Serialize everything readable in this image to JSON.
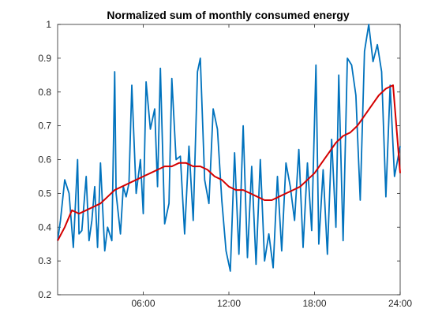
{
  "chart_data": {
    "type": "line",
    "title": "Normalized sum of monthly consumed energy",
    "xlabel": "",
    "ylabel": "",
    "xlim": [
      0,
      24
    ],
    "ylim": [
      0.2,
      1.0
    ],
    "x_ticks": [
      6,
      12,
      18,
      24
    ],
    "x_tick_labels": [
      "06:00",
      "12:00",
      "18:00",
      "24:00"
    ],
    "y_ticks": [
      0.2,
      0.3,
      0.4,
      0.5,
      0.6,
      0.7,
      0.8,
      0.9,
      1.0
    ],
    "y_tick_labels": [
      "0.2",
      "0.3",
      "0.4",
      "0.5",
      "0.6",
      "0.7",
      "0.8",
      "0.9",
      "1"
    ],
    "grid": false,
    "legend": "none",
    "series": [
      {
        "color": "#0072BD",
        "x": [
          0,
          0.2,
          0.5,
          0.8,
          1.1,
          1.4,
          1.5,
          1.7,
          2.0,
          2.2,
          2.4,
          2.6,
          2.8,
          3.0,
          3.3,
          3.5,
          3.8,
          4.0,
          4.1,
          4.4,
          4.6,
          4.8,
          5.0,
          5.2,
          5.5,
          5.8,
          6.0,
          6.2,
          6.5,
          6.8,
          7.0,
          7.2,
          7.5,
          7.8,
          8.0,
          8.3,
          8.6,
          8.9,
          9.2,
          9.5,
          9.8,
          10.0,
          10.3,
          10.6,
          10.9,
          11.2,
          11.5,
          11.8,
          12.1,
          12.4,
          12.7,
          13.0,
          13.3,
          13.6,
          13.9,
          14.2,
          14.5,
          14.8,
          15.1,
          15.4,
          15.7,
          16.0,
          16.3,
          16.6,
          16.9,
          17.2,
          17.5,
          17.8,
          18.1,
          18.3,
          18.6,
          18.9,
          19.2,
          19.5,
          19.7,
          20.0,
          20.3,
          20.6,
          20.9,
          21.2,
          21.5,
          21.8,
          22.1,
          22.4,
          22.7,
          23.0,
          23.3,
          23.6,
          24.0
        ],
        "y": [
          0.36,
          0.42,
          0.54,
          0.5,
          0.34,
          0.6,
          0.38,
          0.39,
          0.55,
          0.36,
          0.42,
          0.52,
          0.34,
          0.59,
          0.33,
          0.4,
          0.36,
          0.86,
          0.5,
          0.38,
          0.52,
          0.49,
          0.53,
          0.82,
          0.5,
          0.6,
          0.44,
          0.83,
          0.69,
          0.75,
          0.52,
          0.87,
          0.41,
          0.47,
          0.84,
          0.6,
          0.61,
          0.38,
          0.64,
          0.42,
          0.86,
          0.9,
          0.54,
          0.47,
          0.75,
          0.69,
          0.48,
          0.33,
          0.27,
          0.62,
          0.32,
          0.7,
          0.31,
          0.58,
          0.29,
          0.6,
          0.3,
          0.38,
          0.28,
          0.55,
          0.33,
          0.59,
          0.52,
          0.42,
          0.63,
          0.34,
          0.59,
          0.39,
          0.88,
          0.35,
          0.57,
          0.32,
          0.66,
          0.4,
          0.85,
          0.36,
          0.9,
          0.88,
          0.79,
          0.48,
          0.92,
          1.0,
          0.89,
          0.94,
          0.86,
          0.49,
          0.82,
          0.55,
          0.64
        ]
      },
      {
        "color": "#D40000",
        "x": [
          0,
          0.5,
          1.0,
          1.5,
          2.0,
          2.5,
          3.0,
          3.5,
          4.0,
          4.5,
          5.0,
          5.5,
          6.0,
          6.5,
          7.0,
          7.5,
          8.0,
          8.5,
          9.0,
          9.5,
          10.0,
          10.5,
          11.0,
          11.5,
          12.0,
          12.5,
          13.0,
          13.5,
          14.0,
          14.5,
          15.0,
          15.5,
          16.0,
          16.5,
          17.0,
          17.5,
          18.0,
          18.5,
          19.0,
          19.5,
          20.0,
          20.5,
          21.0,
          21.5,
          22.0,
          22.5,
          23.0,
          23.5,
          24.0
        ],
        "y": [
          0.36,
          0.4,
          0.45,
          0.44,
          0.45,
          0.46,
          0.47,
          0.49,
          0.51,
          0.52,
          0.53,
          0.54,
          0.55,
          0.56,
          0.57,
          0.58,
          0.58,
          0.59,
          0.59,
          0.58,
          0.58,
          0.57,
          0.55,
          0.54,
          0.52,
          0.51,
          0.51,
          0.5,
          0.49,
          0.48,
          0.48,
          0.49,
          0.5,
          0.51,
          0.52,
          0.54,
          0.56,
          0.59,
          0.62,
          0.65,
          0.67,
          0.68,
          0.7,
          0.73,
          0.76,
          0.79,
          0.81,
          0.82,
          0.56
        ]
      }
    ]
  }
}
